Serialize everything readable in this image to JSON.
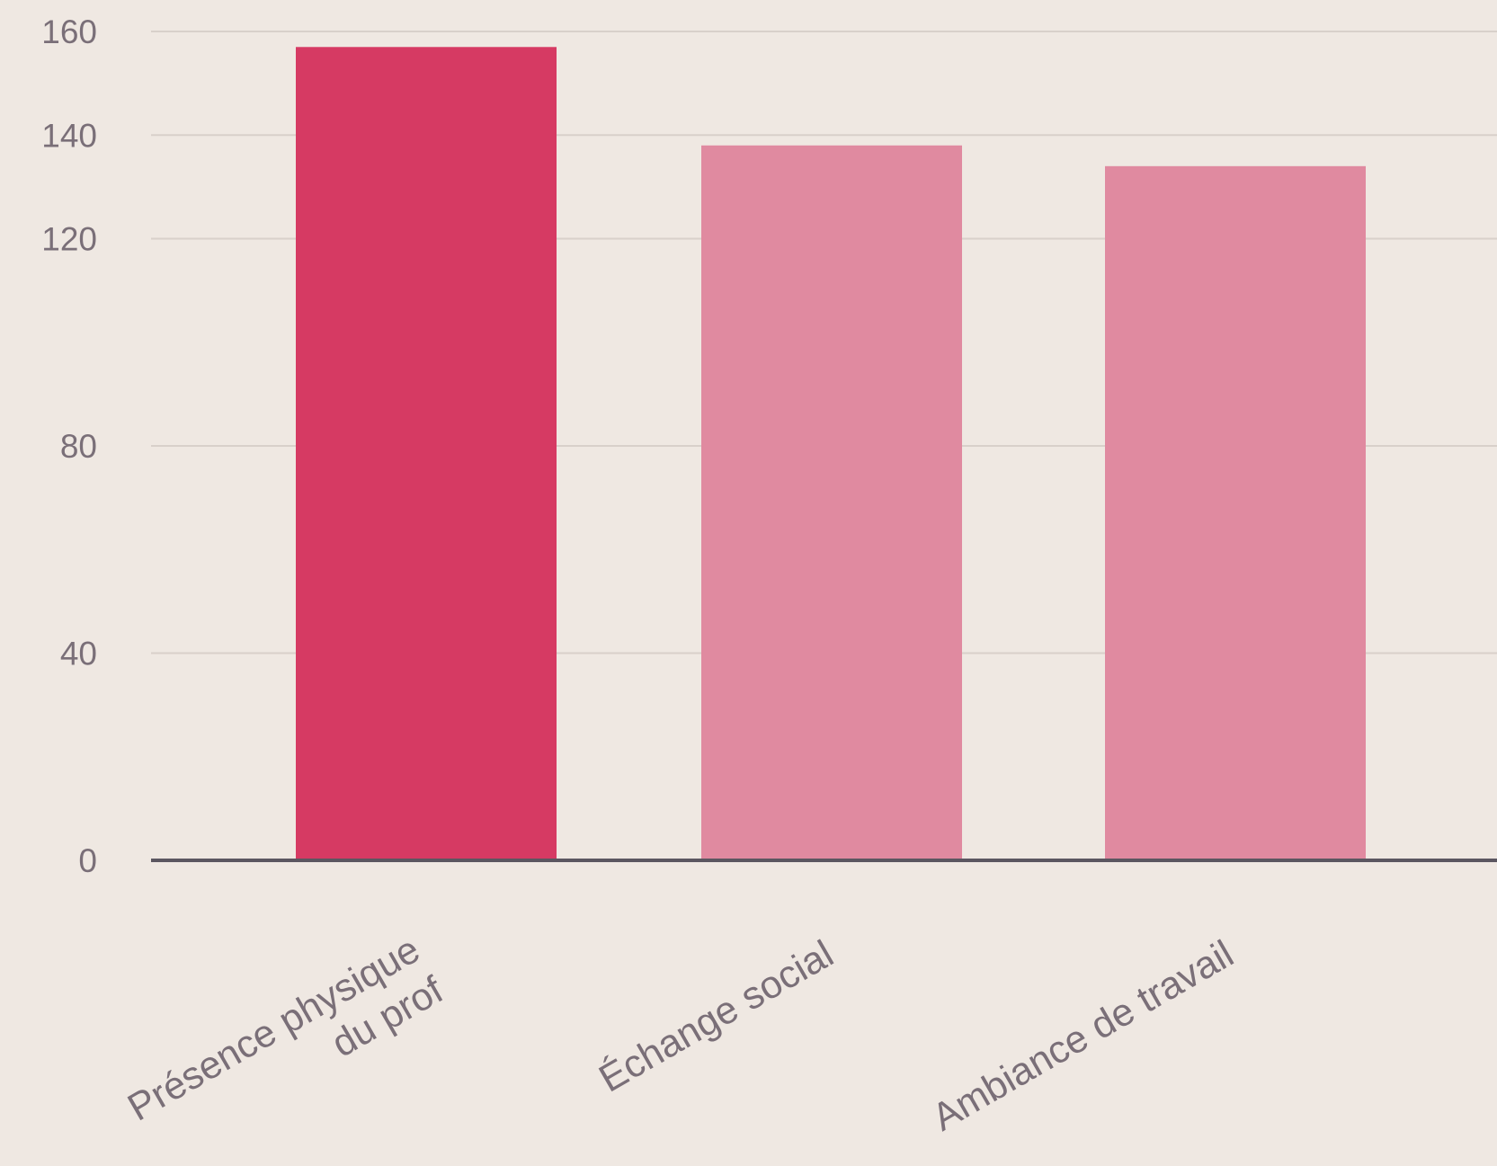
{
  "chart_data": {
    "type": "bar",
    "categories": [
      "Présence physique du prof",
      "Échange social",
      "Ambiance de travail"
    ],
    "category_label_lines": [
      [
        "Présence physique",
        "du prof"
      ],
      [
        "Échange social"
      ],
      [
        "Ambiance de travail"
      ]
    ],
    "values": [
      157,
      138,
      134
    ],
    "highlight_index": 0,
    "ylim": [
      0,
      160
    ],
    "y_ticks": [
      0,
      40,
      80,
      120,
      140,
      160
    ],
    "grid": true,
    "title": "",
    "xlabel": "",
    "ylabel": ""
  },
  "colors": {
    "background": "#efe8e2",
    "highlight_bar": "#d63a63",
    "bar": "#e08aa0",
    "grid": "#d8d0ca",
    "baseline": "#5b5660",
    "text": "#7a6f78"
  }
}
